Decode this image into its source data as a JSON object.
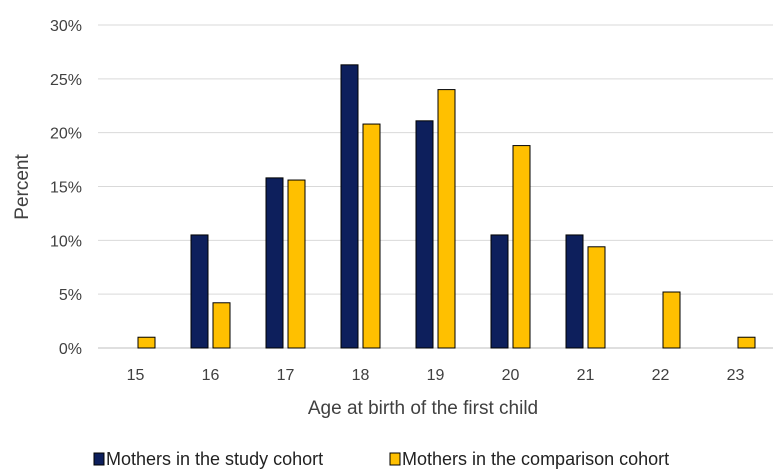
{
  "chart_data": {
    "type": "bar",
    "title": "",
    "xlabel": "Age at birth of the first child",
    "ylabel": "Percent",
    "ylim": [
      0,
      30
    ],
    "ytick_values": [
      0,
      5,
      10,
      15,
      20,
      25,
      30
    ],
    "ytick_labels": [
      "0%",
      "5%",
      "10%",
      "15%",
      "20%",
      "25%",
      "30%"
    ],
    "categories": [
      "15",
      "16",
      "17",
      "18",
      "19",
      "20",
      "21",
      "22",
      "23"
    ],
    "grid": true,
    "legend_position": "bottom",
    "series": [
      {
        "name": "Mothers in the study cohort",
        "color": "#0d1f5c",
        "values": [
          0,
          10.5,
          15.8,
          26.3,
          21.1,
          10.5,
          10.5,
          0,
          0
        ]
      },
      {
        "name": "Mothers in the comparison cohort",
        "color": "#ffc000",
        "values": [
          1.0,
          4.2,
          15.6,
          20.8,
          24.0,
          18.8,
          9.4,
          5.2,
          1.0
        ]
      }
    ]
  }
}
